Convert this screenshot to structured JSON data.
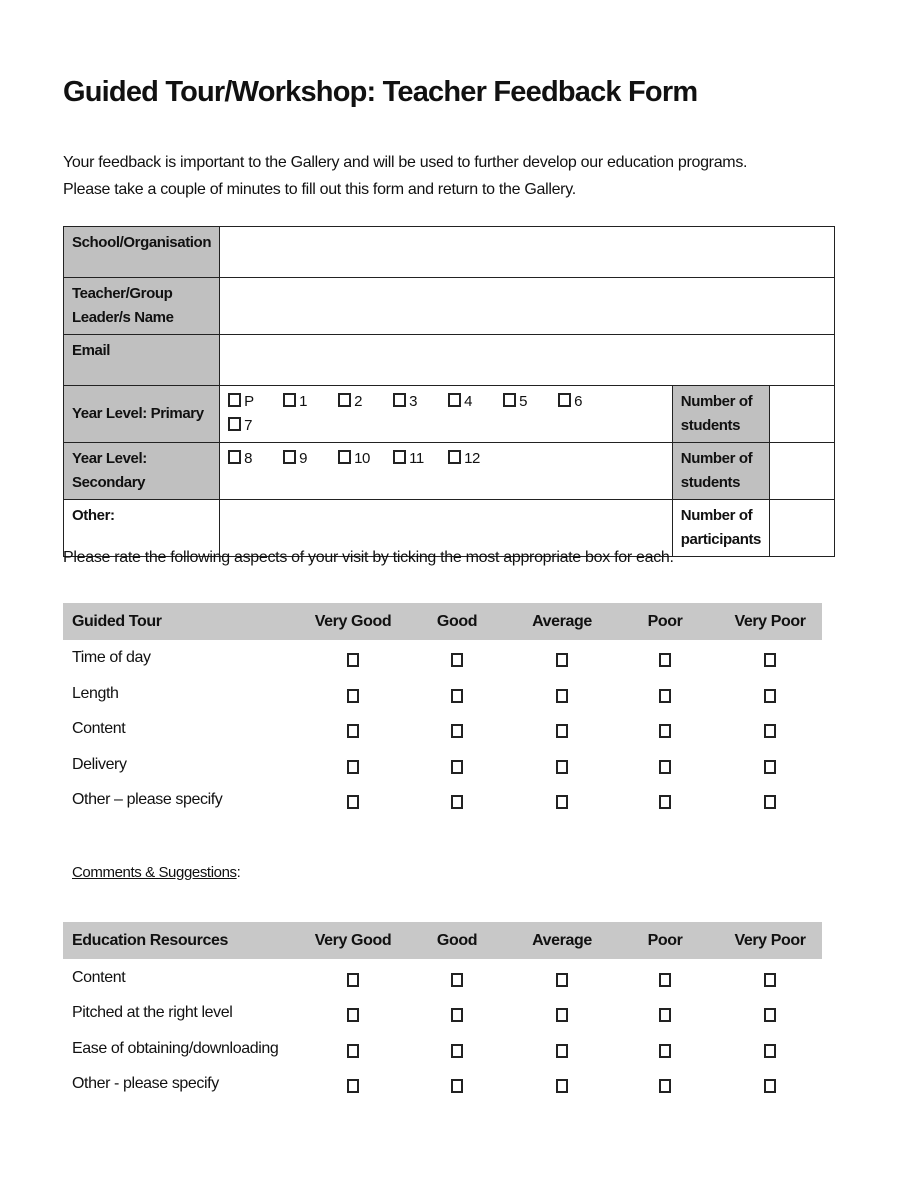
{
  "title": "Guided Tour/Workshop: Teacher Feedback Form",
  "intro": [
    "Your feedback is important to the Gallery and will be used to further develop our education programs.",
    "Please take a couple of minutes to fill out this form and return to the Gallery."
  ],
  "info": {
    "school": "School/Organisation",
    "teacher": "Teacher/Group Leader/s Name",
    "email": "Email",
    "primary": "Year Level: Primary",
    "primary_levels": [
      "P",
      "1",
      "2",
      "3",
      "4",
      "5",
      "6",
      "7"
    ],
    "secondary": "Year Level: Secondary",
    "secondary_levels": [
      "8",
      "9",
      "10",
      "11",
      "12"
    ],
    "other": "Other:",
    "num_students": "Number of students",
    "num_participants": "Number of participants"
  },
  "rate_instruction": "Please rate the following aspects of your visit by ticking the most appropriate box for each.",
  "ratings": [
    "Very Good",
    "Good",
    "Average",
    "Poor",
    "Very Poor"
  ],
  "guided_tour": {
    "heading": "Guided Tour",
    "rows": [
      "Time of day",
      "Length",
      "Content",
      "Delivery",
      "Other – please specify"
    ]
  },
  "comments_label": "Comments & Suggestions",
  "comments_colon": ":",
  "education": {
    "heading": "Education Resources",
    "rows": [
      "Content",
      "Pitched at the right level",
      "Ease of obtaining/downloading",
      "Other - please specify"
    ]
  }
}
